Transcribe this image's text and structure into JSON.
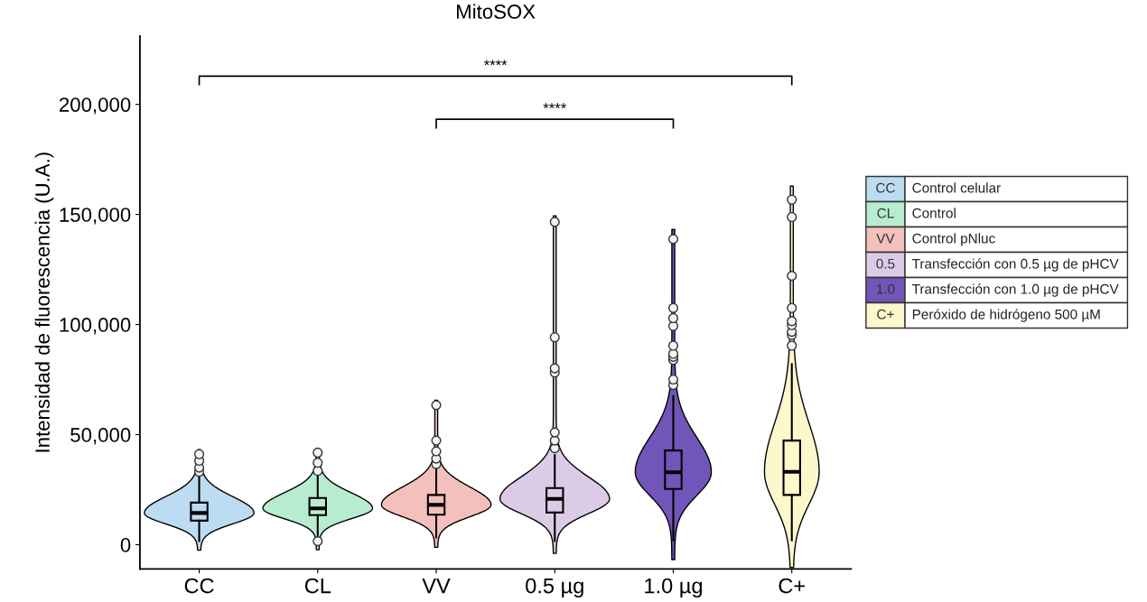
{
  "chart_data": {
    "type": "box",
    "title": "MitoSOX",
    "ylabel": "Intensidad de fluorescencia (U.A.)",
    "categories": [
      "CC",
      "CL",
      "VV",
      "0.5 µg",
      "1.0 µg",
      "C+"
    ],
    "ylim": [
      -11000,
      231000
    ],
    "yticks": [
      {
        "value": 0,
        "label": "0"
      },
      {
        "value": 50000,
        "label": "50,000"
      },
      {
        "value": 100000,
        "label": "100,000"
      },
      {
        "value": 150000,
        "label": "150,000"
      },
      {
        "value": 200000,
        "label": "200,000"
      }
    ],
    "grid": false,
    "legend": "right",
    "annotations": [
      "****",
      "****",
      "CC",
      "CL",
      "VV",
      "0.5",
      "1.0",
      "C+"
    ],
    "series": [
      {
        "name": "Control celular",
        "color": "#bcdcf2",
        "boxes": [
          {
            "low": 1600,
            "q1": 10900,
            "median": 14400,
            "q3": 19100,
            "high": 32500,
            "outliers": [
              33100,
              35000,
              38100,
              41100
            ]
          },
          null,
          null,
          null,
          null,
          null
        ]
      },
      {
        "name": "Control",
        "color": "#b8ecd0",
        "boxes": [
          null,
          {
            "low": 3700,
            "q1": 13400,
            "median": 16500,
            "q3": 21200,
            "high": 32000,
            "outliers": [
              1600,
              33500,
              37200,
              41800
            ]
          },
          null,
          null,
          null,
          null
        ]
      },
      {
        "name": "Control pNluc",
        "color": "#f4c0bb",
        "boxes": [
          null,
          null,
          {
            "low": 3300,
            "q1": 13600,
            "median": 18100,
            "q3": 22600,
            "high": 35000,
            "outliers": [
              36600,
              39100,
              42400,
              47300,
              63400
            ]
          },
          null,
          null,
          null
        ]
      },
      {
        "name": "Transfección con 0.5 µg de pHCV",
        "color": "#dccbe6",
        "boxes": [
          null,
          null,
          null,
          {
            "low": 1600,
            "q1": 14600,
            "median": 20800,
            "q3": 25700,
            "high": 40700,
            "outliers": [
              43800,
              47300,
              51000,
              78200,
              80100,
              94200,
              146600
            ]
          },
          null,
          null
        ]
      },
      {
        "name": "Transfección con 1.0 µg de pHCV",
        "color": "#7255b8",
        "boxes": [
          null,
          null,
          null,
          null,
          {
            "low": 2000,
            "q1": 25300,
            "median": 32900,
            "q3": 42800,
            "high": 67500,
            "outliers": [
              72500,
              75000,
              83900,
              85300,
              86700,
              90400,
              99300,
              102900,
              107500,
              138800
            ]
          },
          null
        ]
      },
      {
        "name": "Peróxido de hidrógeno 500 µM",
        "color": "#fdf7cc",
        "boxes": [
          null,
          null,
          null,
          null,
          null,
          {
            "low": 2000,
            "q1": 22600,
            "median": 33100,
            "q3": 47300,
            "high": 82000,
            "outliers": [
              90400,
              95200,
              96700,
              99700,
              101500,
              107500,
              122100,
              148800,
              156700
            ]
          }
        ]
      }
    ]
  }
}
